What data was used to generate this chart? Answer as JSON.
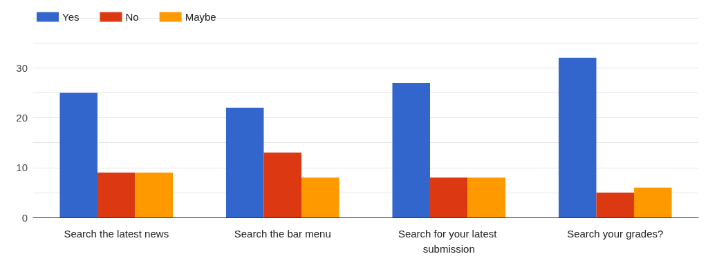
{
  "chart_data": {
    "type": "bar",
    "categories": [
      "Search the latest news",
      "Search the bar menu",
      "Search for your latest submission",
      "Search your grades?"
    ],
    "series": [
      {
        "name": "Yes",
        "color": "#3366cc",
        "values": [
          25,
          22,
          27,
          32
        ]
      },
      {
        "name": "No",
        "color": "#dc3912",
        "values": [
          9,
          13,
          8,
          5
        ]
      },
      {
        "name": "Maybe",
        "color": "#ff9900",
        "values": [
          9,
          8,
          8,
          6
        ]
      }
    ],
    "ylim": [
      0,
      40
    ],
    "yticks": [
      0,
      {
        "value": 5,
        "label": null
      },
      10,
      {
        "value": 15,
        "label": null
      },
      20,
      {
        "value": 25,
        "label": null
      },
      30,
      {
        "value": 35,
        "label": null
      },
      {
        "value": 40,
        "label": null
      }
    ],
    "grid": true,
    "legend": "top left"
  }
}
